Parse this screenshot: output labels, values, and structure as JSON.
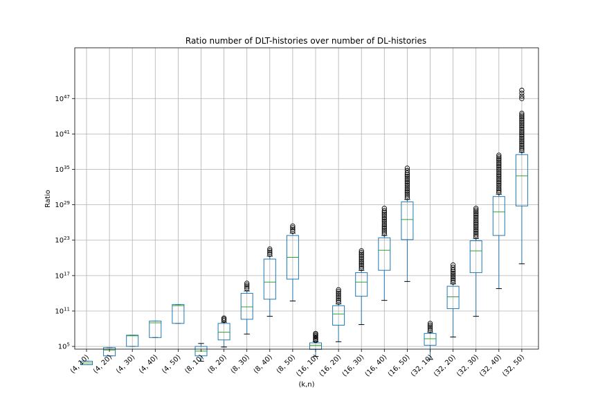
{
  "chart_data": {
    "type": "box",
    "title": "Ratio number of DLT-histories over number of DL-histories",
    "xlabel": "(k,n)",
    "ylabel": "Ratio",
    "yscale": "log",
    "ylim_log10": [
      0,
      50
    ],
    "yticks": [
      {
        "base": "10",
        "exp": "5",
        "value_log10": 5
      },
      {
        "base": "10",
        "exp": "11",
        "value_log10": 11
      },
      {
        "base": "10",
        "exp": "17",
        "value_log10": 17
      },
      {
        "base": "10",
        "exp": "23",
        "value_log10": 23
      },
      {
        "base": "10",
        "exp": "29",
        "value_log10": 29
      },
      {
        "base": "10",
        "exp": "35",
        "value_log10": 35
      },
      {
        "base": "10",
        "exp": "41",
        "value_log10": 41
      },
      {
        "base": "10",
        "exp": "47",
        "value_log10": 47
      }
    ],
    "grid": true,
    "categories": [
      "(4, 10)",
      "(4, 20)",
      "(4, 30)",
      "(4, 40)",
      "(4, 50)",
      "(8, 10)",
      "(8, 20)",
      "(8, 30)",
      "(8, 40)",
      "(8, 50)",
      "(16, 10)",
      "(16, 20)",
      "(16, 30)",
      "(16, 40)",
      "(16, 50)",
      "(32, 10)",
      "(32, 20)",
      "(32, 30)",
      "(32, 40)",
      "(32, 50)"
    ],
    "boxes_log10": [
      {
        "whislo": 1.9,
        "q1": 1.9,
        "med": 2.2,
        "q3": 2.5,
        "whishi": 2.5,
        "fliers": []
      },
      {
        "whislo": 3.4,
        "q1": 3.4,
        "med": 4.4,
        "q3": 4.8,
        "whishi": 4.8,
        "fliers": []
      },
      {
        "whislo": 5.0,
        "q1": 5.0,
        "med": 6.8,
        "q3": 6.9,
        "whishi": 6.9,
        "fliers": []
      },
      {
        "whislo": 6.5,
        "q1": 6.5,
        "med": 9.0,
        "q3": 9.3,
        "whishi": 9.3,
        "fliers": []
      },
      {
        "whislo": 8.9,
        "q1": 8.9,
        "med": 11.9,
        "q3": 12.1,
        "whishi": 12.1,
        "fliers": []
      },
      {
        "whislo": 2.5,
        "q1": 3.4,
        "med": 4.2,
        "q3": 5.0,
        "whishi": 5.5,
        "fliers": []
      },
      {
        "whislo": 4.9,
        "q1": 6.1,
        "med": 7.4,
        "q3": 8.9,
        "whishi": 9.1,
        "fliers": [
          9.4,
          9.6,
          9.8
        ]
      },
      {
        "whislo": 7.1,
        "q1": 9.6,
        "med": 11.7,
        "q3": 14.0,
        "whishi": 14.4,
        "fliers": [
          14.8,
          15.1,
          15.4,
          15.7
        ]
      },
      {
        "whislo": 10.1,
        "q1": 13.0,
        "med": 15.9,
        "q3": 19.8,
        "whishi": 20.3,
        "fliers": [
          20.6,
          20.9,
          21.2,
          21.5
        ]
      },
      {
        "whislo": 12.7,
        "q1": 16.4,
        "med": 20.1,
        "q3": 23.8,
        "whishi": 24.2,
        "fliers": [
          24.5,
          24.8,
          25.1,
          25.4
        ]
      },
      {
        "whislo": 3.3,
        "q1": 4.5,
        "med": 5.2,
        "q3": 5.6,
        "whishi": 5.8,
        "fliers": [
          6.0,
          6.2,
          6.4,
          6.6,
          6.8,
          7.0,
          7.2
        ]
      },
      {
        "whislo": 5.8,
        "q1": 8.6,
        "med": 10.5,
        "q3": 11.9,
        "whishi": 12.2,
        "fliers": [
          12.5,
          12.8,
          13.1,
          13.4,
          13.7,
          14.0,
          14.3,
          14.6
        ]
      },
      {
        "whislo": 8.7,
        "q1": 13.5,
        "med": 15.9,
        "q3": 17.5,
        "whishi": 17.9,
        "fliers": [
          18.2,
          18.5,
          18.8,
          19.1,
          19.4,
          19.7,
          20.0,
          20.3,
          20.6,
          20.9,
          21.2
        ]
      },
      {
        "whislo": 12.8,
        "q1": 17.9,
        "med": 21.3,
        "q3": 23.4,
        "whishi": 23.8,
        "fliers": [
          24.1,
          24.4,
          24.7,
          25.0,
          25.3,
          25.6,
          25.9,
          26.2,
          26.5,
          26.8,
          27.1,
          27.4,
          27.7,
          28.0,
          28.4
        ]
      },
      {
        "whislo": 16.0,
        "q1": 23.1,
        "med": 26.5,
        "q3": 29.5,
        "whishi": 29.9,
        "fliers": [
          30.2,
          30.5,
          30.8,
          31.1,
          31.4,
          31.7,
          32.0,
          32.3,
          32.6,
          32.9,
          33.2,
          33.5,
          33.8,
          34.1,
          34.4,
          34.8,
          35.2
        ]
      },
      {
        "whislo": 2.8,
        "q1": 5.2,
        "med": 6.3,
        "q3": 7.2,
        "whishi": 7.4,
        "fliers": [
          7.7,
          8.0,
          8.3,
          8.6,
          8.9
        ]
      },
      {
        "whislo": 6.6,
        "q1": 11.4,
        "med": 13.4,
        "q3": 15.2,
        "whishi": 15.6,
        "fliers": [
          15.9,
          16.2,
          16.5,
          16.8,
          17.1,
          17.4,
          17.7,
          18.0,
          18.4,
          18.8
        ]
      },
      {
        "whislo": 10.1,
        "q1": 17.5,
        "med": 21.2,
        "q3": 22.9,
        "whishi": 23.3,
        "fliers": [
          23.6,
          23.9,
          24.2,
          24.5,
          24.8,
          25.1,
          25.4,
          25.7,
          26.0,
          26.3,
          26.6,
          26.9,
          27.2,
          27.5,
          27.8,
          28.1,
          28.4
        ]
      },
      {
        "whislo": 14.8,
        "q1": 23.8,
        "med": 27.8,
        "q3": 30.4,
        "whishi": 30.8,
        "fliers": [
          31.1,
          31.4,
          31.7,
          32.0,
          32.3,
          32.6,
          32.9,
          33.2,
          33.5,
          33.8,
          34.1,
          34.4,
          34.7,
          35.0,
          35.3,
          35.6,
          35.9,
          36.2,
          36.5,
          36.8,
          37.1,
          37.4
        ]
      },
      {
        "whislo": 19.0,
        "q1": 28.8,
        "med": 33.9,
        "q3": 37.5,
        "whishi": 37.9,
        "fliers": [
          38.2,
          38.5,
          38.8,
          39.1,
          39.4,
          39.7,
          40.0,
          40.3,
          40.6,
          40.9,
          41.2,
          41.5,
          41.8,
          42.1,
          42.4,
          42.7,
          43.0,
          43.3,
          43.6,
          43.9,
          44.2,
          44.5,
          47.0,
          47.4,
          47.9,
          48.4
        ]
      }
    ],
    "colors": {
      "box": "#1f77b4",
      "median": "#2ca02c",
      "caps": "#000000",
      "fliers": "#000000",
      "grid": "#b0b0b0"
    }
  }
}
